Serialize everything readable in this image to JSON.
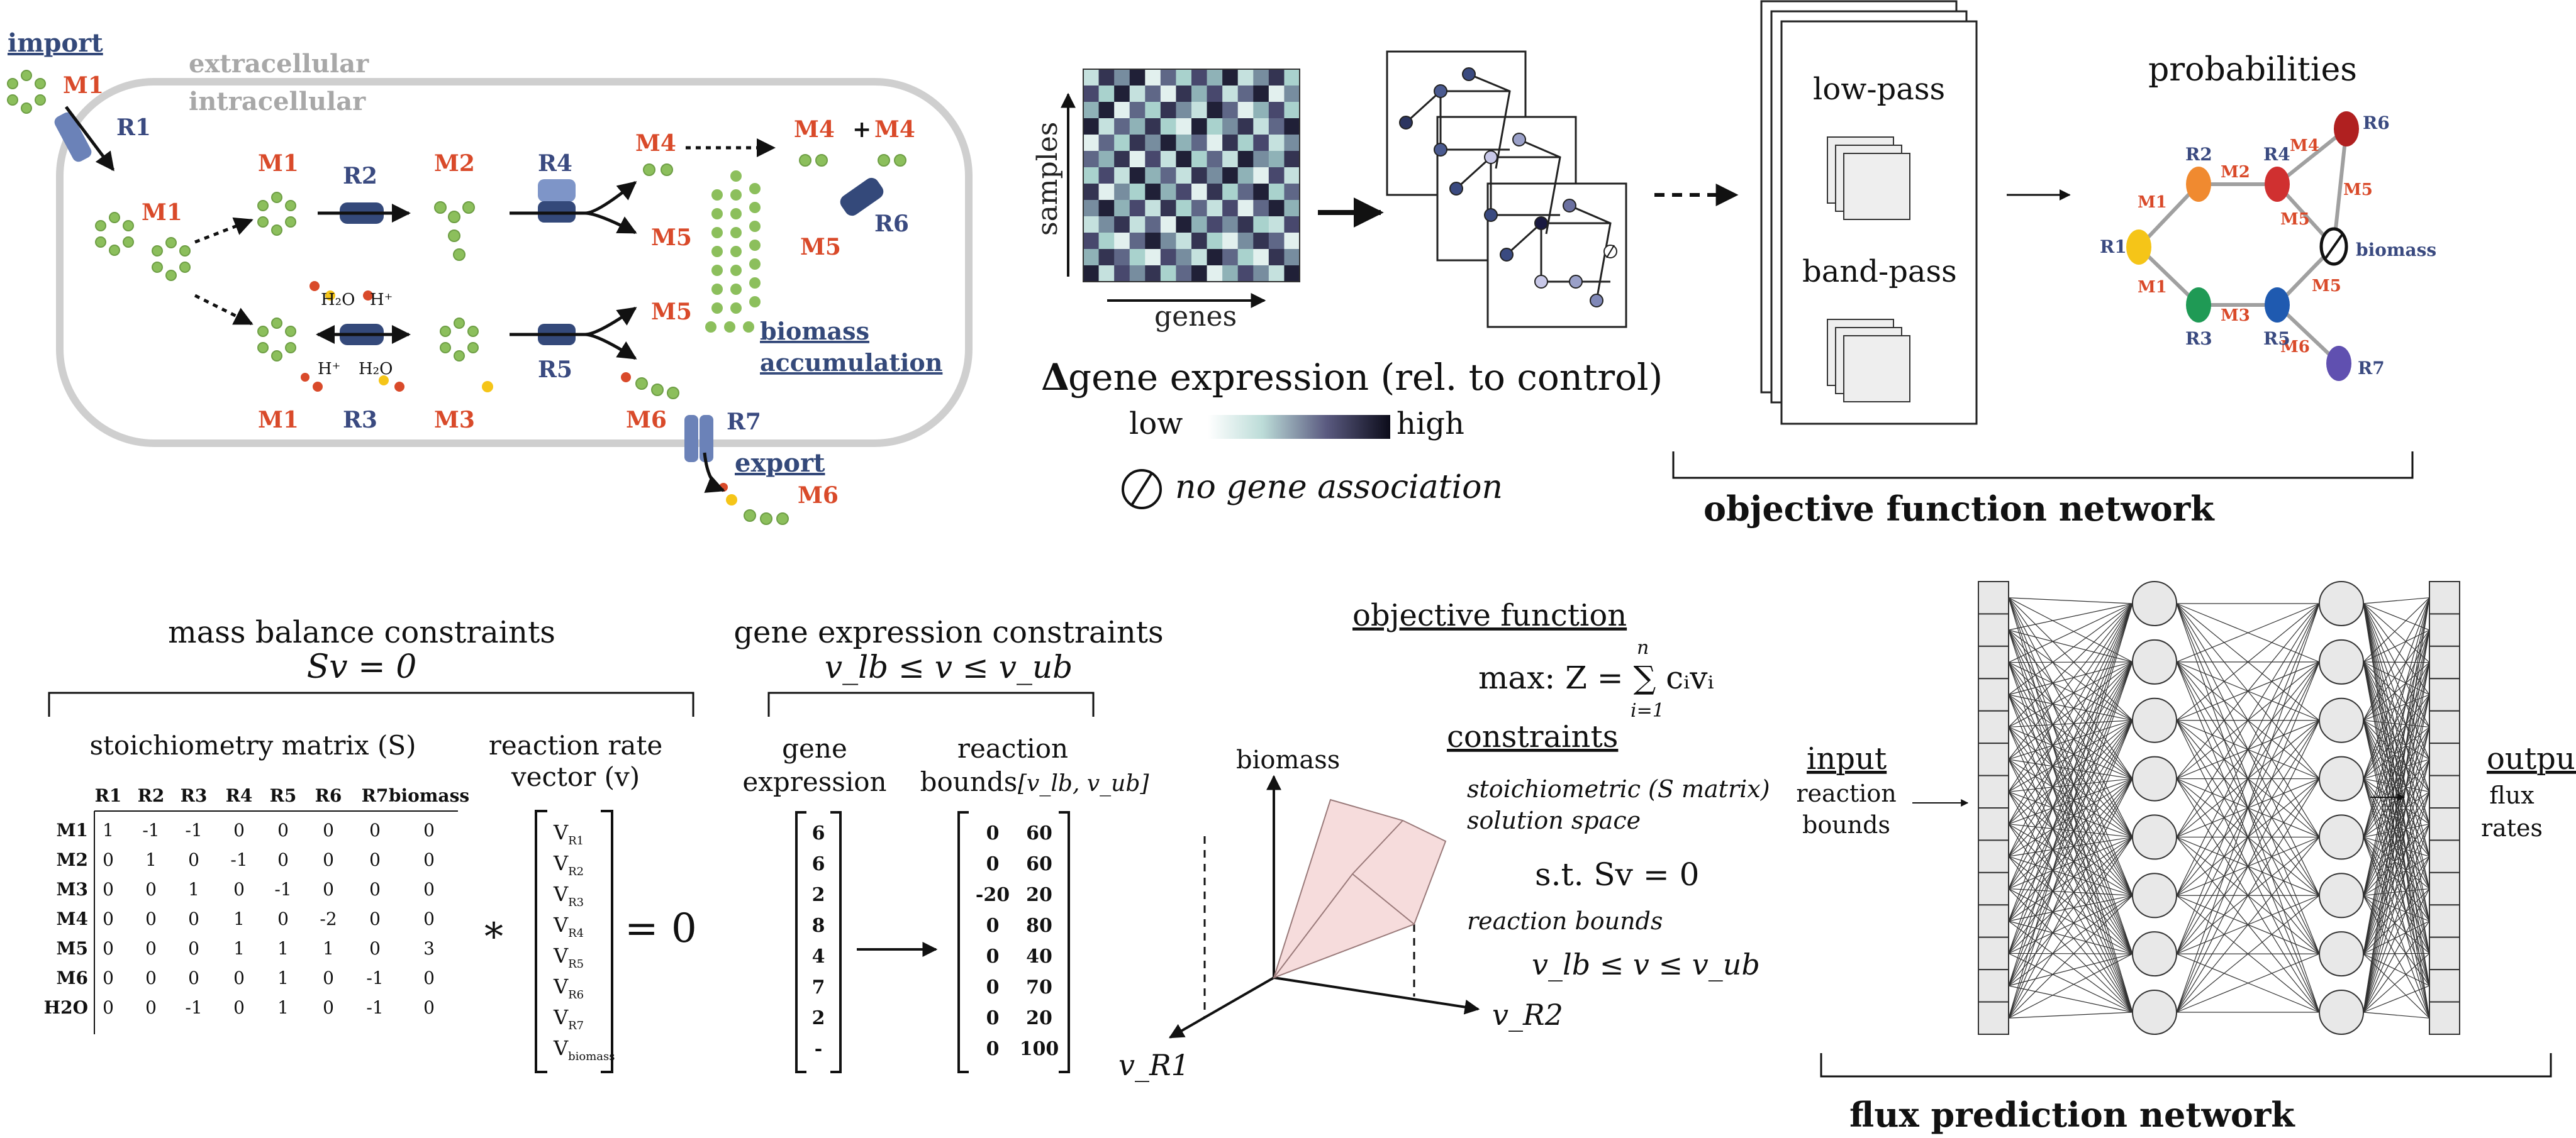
{
  "colors": {
    "metabolite": "#d94a2a",
    "reaction": "#3a4a80",
    "enzyme": "#34497a",
    "cell_border": "#cfcfcf",
    "molecule": "#8cbf5c",
    "node_gray": "#a0a0a0"
  },
  "cell": {
    "import": "import",
    "export": "export",
    "extracellular": "extracellular",
    "intracellular": "intracellular",
    "biomass_line1": "biomass",
    "biomass_line2": "accumulation",
    "metabolites": [
      {
        "id": "m1a",
        "text": "M1"
      },
      {
        "id": "m1b",
        "text": "M1"
      },
      {
        "id": "m1c",
        "text": "M1"
      },
      {
        "id": "m1d",
        "text": "M1"
      },
      {
        "id": "m2",
        "text": "M2"
      },
      {
        "id": "m3",
        "text": "M3"
      },
      {
        "id": "m4a",
        "text": "M4"
      },
      {
        "id": "m4b",
        "text": "M4"
      },
      {
        "id": "m4plus",
        "text": "+"
      },
      {
        "id": "m4c",
        "text": "M4"
      },
      {
        "id": "m5a",
        "text": "M5"
      },
      {
        "id": "m5b",
        "text": "M5"
      },
      {
        "id": "m5c",
        "text": "M5"
      },
      {
        "id": "m6a",
        "text": "M6"
      },
      {
        "id": "m6b",
        "text": "M6"
      }
    ],
    "reactions": [
      {
        "id": "r1",
        "text": "R1"
      },
      {
        "id": "r2",
        "text": "R2"
      },
      {
        "id": "r3",
        "text": "R3"
      },
      {
        "id": "r4",
        "text": "R4"
      },
      {
        "id": "r5",
        "text": "R5"
      },
      {
        "id": "r6",
        "text": "R6"
      },
      {
        "id": "r7",
        "text": "R7"
      }
    ],
    "h2o_1": "H₂O",
    "h2o_2": "H₂O",
    "h_1": "H⁺",
    "h_2": "H⁺"
  },
  "expression": {
    "samples_label": "samples",
    "genes_label": "genes",
    "delta_symbol": "Δ",
    "title_rest": " gene expression (rel. to control)",
    "low": "low",
    "high": "high",
    "no_gene_symbol": "∅",
    "no_gene": "no gene association",
    "heatmap": [
      [
        0.2,
        0.8,
        0.5,
        0.9,
        0.1,
        0.6,
        0.3,
        0.7,
        0.4,
        0.9,
        0.2,
        0.5,
        0.8,
        0.3
      ],
      [
        0.7,
        0.3,
        0.9,
        0.2,
        0.6,
        0.1,
        0.8,
        0.4,
        0.7,
        0.2,
        0.6,
        0.9,
        0.1,
        0.5
      ],
      [
        0.4,
        0.9,
        0.1,
        0.6,
        0.3,
        0.8,
        0.5,
        0.2,
        0.9,
        0.6,
        0.1,
        0.4,
        0.7,
        0.3
      ],
      [
        0.9,
        0.2,
        0.6,
        0.4,
        0.8,
        0.3,
        0.1,
        0.9,
        0.3,
        0.5,
        0.8,
        0.2,
        0.6,
        0.9
      ],
      [
        0.1,
        0.6,
        0.3,
        0.8,
        0.5,
        0.9,
        0.4,
        0.6,
        0.1,
        0.8,
        0.3,
        0.7,
        0.2,
        0.5
      ],
      [
        0.6,
        0.4,
        0.8,
        0.1,
        0.7,
        0.2,
        0.9,
        0.3,
        0.6,
        0.2,
        0.9,
        0.5,
        0.4,
        0.8
      ],
      [
        0.3,
        0.7,
        0.2,
        0.9,
        0.4,
        0.6,
        0.2,
        0.8,
        0.5,
        0.9,
        0.4,
        0.1,
        0.7,
        0.2
      ],
      [
        0.8,
        0.1,
        0.5,
        0.3,
        0.9,
        0.4,
        0.7,
        0.1,
        0.8,
        0.3,
        0.6,
        0.9,
        0.3,
        0.6
      ],
      [
        0.5,
        0.9,
        0.4,
        0.7,
        0.2,
        0.8,
        0.3,
        0.6,
        0.2,
        0.7,
        0.1,
        0.6,
        0.9,
        0.4
      ],
      [
        0.2,
        0.5,
        0.8,
        0.2,
        0.6,
        0.1,
        0.9,
        0.4,
        0.7,
        0.5,
        0.8,
        0.3,
        0.2,
        0.7
      ],
      [
        0.7,
        0.3,
        0.1,
        0.6,
        0.9,
        0.5,
        0.2,
        0.8,
        0.3,
        0.1,
        0.5,
        0.8,
        0.6,
        0.1
      ],
      [
        0.4,
        0.8,
        0.6,
        0.3,
        0.1,
        0.7,
        0.5,
        0.2,
        0.9,
        0.6,
        0.3,
        0.1,
        0.8,
        0.5
      ],
      [
        0.9,
        0.2,
        0.7,
        0.5,
        0.8,
        0.3,
        0.6,
        0.9,
        0.1,
        0.4,
        0.7,
        0.5,
        0.2,
        0.9
      ]
    ]
  },
  "objective_network": {
    "low_pass": "low-pass",
    "band_pass": "band-pass",
    "probabilities": "probabilities",
    "title": "objective function network",
    "nodes": [
      {
        "id": "R1",
        "color": "#f5c518"
      },
      {
        "id": "R2",
        "color": "#f08a30"
      },
      {
        "id": "R3",
        "color": "#1f9a55"
      },
      {
        "id": "R4",
        "color": "#d03030"
      },
      {
        "id": "R5",
        "color": "#1f5ab0"
      },
      {
        "id": "R6",
        "color": "#b02020"
      },
      {
        "id": "R7",
        "color": "#6050b0"
      },
      {
        "id": "biomass",
        "color": "#ffffff"
      }
    ],
    "edge_labels": [
      "M1",
      "M2",
      "M4",
      "M5",
      "M5",
      "M1",
      "M3",
      "M5",
      "M6"
    ]
  },
  "mass_balance": {
    "title": "mass balance constraints",
    "equation": "Sv = 0",
    "matrix_title": "stoichiometry matrix (S)",
    "vector_title_1": "reaction rate",
    "vector_title_2": "vector (v)",
    "columns": [
      "R1",
      "R2",
      "R3",
      "R4",
      "R5",
      "R6",
      "R7",
      "biomass"
    ],
    "rows": [
      {
        "name": "M1",
        "values": [
          "1",
          "-1",
          "-1",
          "0",
          "0",
          "0",
          "0",
          "0"
        ]
      },
      {
        "name": "M2",
        "values": [
          "0",
          "1",
          "0",
          "-1",
          "0",
          "0",
          "0",
          "0"
        ]
      },
      {
        "name": "M3",
        "values": [
          "0",
          "0",
          "1",
          "0",
          "-1",
          "0",
          "0",
          "0"
        ]
      },
      {
        "name": "M4",
        "values": [
          "0",
          "0",
          "0",
          "1",
          "0",
          "-2",
          "0",
          "0"
        ]
      },
      {
        "name": "M5",
        "values": [
          "0",
          "0",
          "0",
          "1",
          "1",
          "1",
          "0",
          "3"
        ]
      },
      {
        "name": "M6",
        "values": [
          "0",
          "0",
          "0",
          "0",
          "1",
          "0",
          "-1",
          "0"
        ]
      },
      {
        "name": "H2O",
        "values": [
          "0",
          "0",
          "-1",
          "0",
          "1",
          "0",
          "-1",
          "0"
        ]
      }
    ],
    "vector": [
      {
        "v": "V",
        "sub": "R1"
      },
      {
        "v": "V",
        "sub": "R2"
      },
      {
        "v": "V",
        "sub": "R3"
      },
      {
        "v": "V",
        "sub": "R4"
      },
      {
        "v": "V",
        "sub": "R5"
      },
      {
        "v": "V",
        "sub": "R6"
      },
      {
        "v": "V",
        "sub": "R7"
      },
      {
        "v": "V",
        "sub": "biomass"
      }
    ],
    "times": "*",
    "equals_zero": "= 0"
  },
  "gene_constraints": {
    "title": "gene expression constraints",
    "equation": "v_lb ≤ v ≤ v_ub",
    "col1_1": "gene",
    "col1_2": "expression",
    "col2_1": "reaction",
    "col2_2": "bounds",
    "bounds_label": "[v_lb, v_ub]",
    "expression": [
      "6",
      "6",
      "2",
      "8",
      "4",
      "7",
      "2",
      "-"
    ],
    "lower": [
      "0",
      "0",
      "-20",
      "0",
      "0",
      "0",
      "0",
      "0"
    ],
    "upper": [
      "60",
      "60",
      "20",
      "80",
      "40",
      "70",
      "20",
      "100"
    ]
  },
  "optimization": {
    "objective_title": "objective function",
    "objective_eq": "max: Z = ∑ cᵢvᵢ",
    "sum_top": "n",
    "sum_bottom": "i=1",
    "constraints_title": "constraints",
    "stoich_1": "stoichiometric (S matrix)",
    "stoich_2": "solution space",
    "st": "s.t. Sv = 0",
    "bounds_title": "reaction bounds",
    "bounds_eq": "v_lb ≤ v ≤ v_ub",
    "axis_biomass": "biomass",
    "axis_r1": "v_R1",
    "axis_r2": "v_R2"
  },
  "flux_network": {
    "input_title": "input",
    "input_1": "reaction",
    "input_2": "bounds",
    "output_title": "output",
    "output_1": "flux",
    "output_2": "rates",
    "title": "flux prediction network",
    "input_cells": 14,
    "hidden_nodes": 8,
    "output_cells": 14
  }
}
